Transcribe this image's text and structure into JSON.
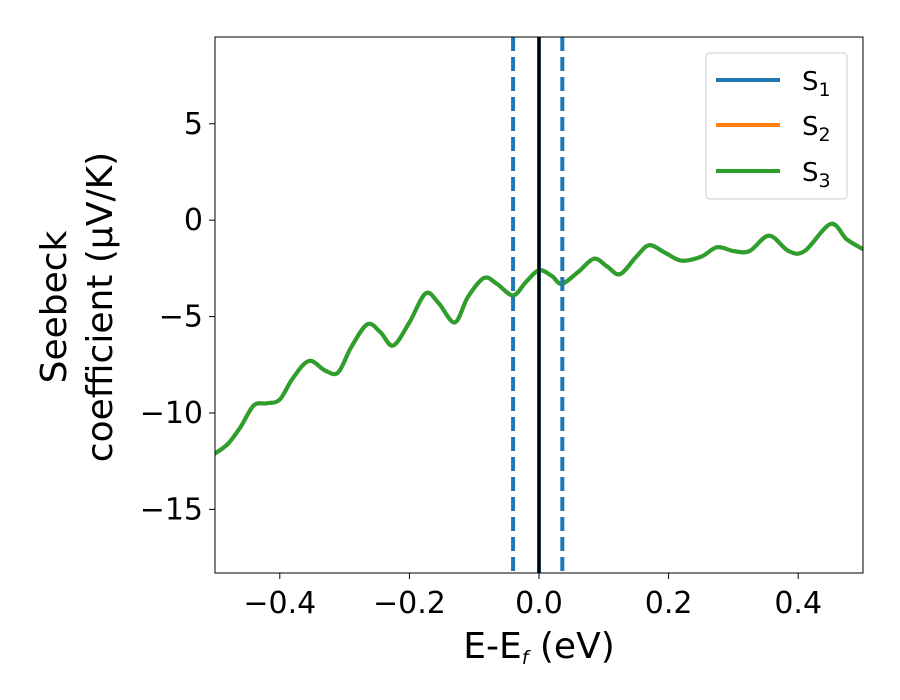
{
  "chart_data": {
    "type": "line",
    "title": "",
    "xlabel": {
      "main": "E-E",
      "sub": "f",
      "suffix": " (eV)"
    },
    "ylabel": {
      "line1": "Seebeck",
      "line2": "coefficient  (μV/K)"
    },
    "xlim": [
      -0.5,
      0.5
    ],
    "ylim": [
      -18.3,
      9.5
    ],
    "xticks": [
      -0.4,
      -0.2,
      0.0,
      0.2,
      0.4
    ],
    "xtick_labels": [
      "−0.4",
      "−0.2",
      "0.0",
      "0.2",
      "0.4"
    ],
    "yticks": [
      5,
      0,
      -5,
      -10,
      -15
    ],
    "ytick_labels": [
      "5",
      "0",
      "−5",
      "−10",
      "−15"
    ],
    "grid": false,
    "legend_position": "top-right",
    "series": [
      {
        "name": "S",
        "sub": "1",
        "color": "#1f77b4",
        "values_same_as": "S3"
      },
      {
        "name": "S",
        "sub": "2",
        "color": "#ff7f0e",
        "values_same_as": "S3"
      },
      {
        "name": "S",
        "sub": "3",
        "color": "#2ca02c"
      }
    ],
    "x": [
      -0.5,
      -0.48,
      -0.46,
      -0.44,
      -0.42,
      -0.4,
      -0.38,
      -0.355,
      -0.33,
      -0.31,
      -0.29,
      -0.265,
      -0.245,
      -0.225,
      -0.2,
      -0.175,
      -0.155,
      -0.13,
      -0.11,
      -0.085,
      -0.065,
      -0.04,
      -0.02,
      0.0,
      0.02,
      0.035,
      0.06,
      0.085,
      0.105,
      0.125,
      0.15,
      0.17,
      0.195,
      0.22,
      0.25,
      0.275,
      0.3,
      0.325,
      0.355,
      0.385,
      0.41,
      0.45,
      0.475,
      0.5
    ],
    "values": [
      -12.1,
      -11.6,
      -10.7,
      -9.6,
      -9.5,
      -9.3,
      -8.2,
      -7.3,
      -7.8,
      -7.9,
      -6.6,
      -5.4,
      -5.8,
      -6.5,
      -5.3,
      -3.8,
      -4.3,
      -5.3,
      -4.0,
      -3.0,
      -3.3,
      -3.9,
      -3.2,
      -2.6,
      -2.9,
      -3.3,
      -2.7,
      -2.0,
      -2.4,
      -2.8,
      -1.9,
      -1.3,
      -1.7,
      -2.1,
      -1.9,
      -1.4,
      -1.6,
      -1.6,
      -0.8,
      -1.6,
      -1.6,
      -0.2,
      -1.0,
      -1.5
    ],
    "vlines": [
      {
        "x": -0.04,
        "color": "#1f77b4",
        "style": "dashed"
      },
      {
        "x": 0.0,
        "color": "#1f77b4",
        "style": "solid"
      },
      {
        "x": 0.0,
        "color": "#000000",
        "style": "solid"
      },
      {
        "x": 0.036,
        "color": "#1f77b4",
        "style": "dashed"
      }
    ]
  }
}
